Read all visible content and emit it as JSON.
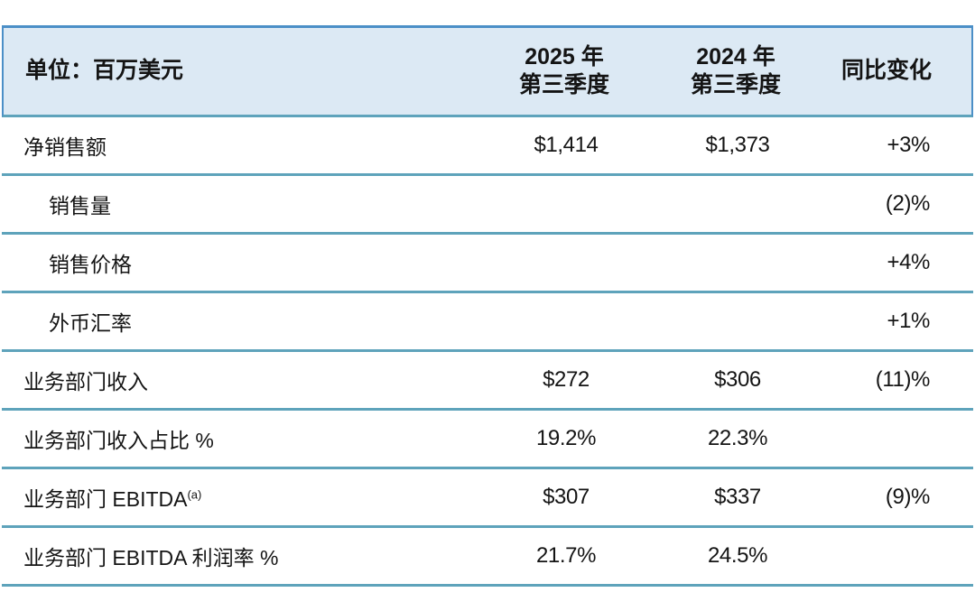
{
  "chart_data": {
    "type": "table",
    "title": "单位：百万美元",
    "columns": [
      "单位：百万美元",
      "2025 年第三季度",
      "2024 年第三季度",
      "同比变化"
    ],
    "rows": [
      [
        "净销售额",
        "$1,414",
        "$1,373",
        "+3%"
      ],
      [
        "销售量",
        "",
        "",
        "(2)%"
      ],
      [
        "销售价格",
        "",
        "",
        "+4%"
      ],
      [
        "外币汇率",
        "",
        "",
        "+1%"
      ],
      [
        "业务部门收入",
        "$272",
        "$306",
        "(11)%"
      ],
      [
        "业务部门收入占比 %",
        "19.2%",
        "22.3%",
        ""
      ],
      [
        "业务部门 EBITDA(a)",
        "$307",
        "$337",
        "(9)%"
      ],
      [
        "业务部门 EBITDA 利润率 %",
        "21.7%",
        "24.5%",
        ""
      ]
    ],
    "layout": "header row shaded light blue with blue outline; teal horizontal rules between rows; columns 2-3 centered; column 4 right-aligned; rows 2-4 indented sub-items of row 1"
  },
  "table": {
    "unit_label": "单位：百万美元",
    "col_2025_line1": "2025 年",
    "col_2025_line2": "第三季度",
    "col_2024_line1": "2024 年",
    "col_2024_line2": "第三季度",
    "col_yoy": "同比变化",
    "rows": [
      {
        "label": "净销售额",
        "v2025": "$1,414",
        "v2024": "$1,373",
        "yoy": "+3%"
      },
      {
        "label": "销售量",
        "v2025": "",
        "v2024": "",
        "yoy": "(2)%"
      },
      {
        "label": "销售价格",
        "v2025": "",
        "v2024": "",
        "yoy": "+4%"
      },
      {
        "label": "外币汇率",
        "v2025": "",
        "v2024": "",
        "yoy": "+1%"
      },
      {
        "label": "业务部门收入",
        "v2025": "$272",
        "v2024": "$306",
        "yoy": "(11)%"
      },
      {
        "label": "业务部门收入占比 %",
        "v2025": "19.2%",
        "v2024": "22.3%",
        "yoy": ""
      },
      {
        "label": "业务部门 EBITDA",
        "label_sup": "(a)",
        "v2025": "$307",
        "v2024": "$337",
        "yoy": "(9)%"
      },
      {
        "label": "业务部门 EBITDA 利润率 %",
        "v2025": "21.7%",
        "v2024": "24.5%",
        "yoy": ""
      }
    ]
  },
  "colors": {
    "header_bg": "#dce9f4",
    "header_border": "#4b8fc7",
    "row_line": "#5ea3bb",
    "text": "#141414"
  }
}
